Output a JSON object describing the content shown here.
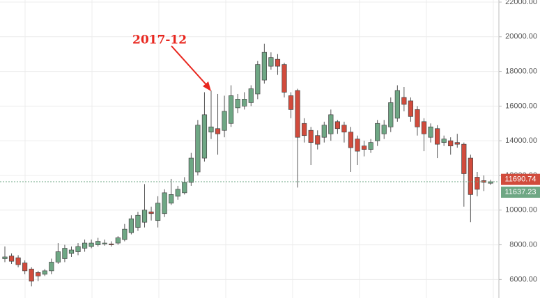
{
  "chart_data": {
    "type": "candlestick",
    "annotation": "2017-12",
    "color_up": "#6ea784",
    "color_down": "#d14b3c",
    "ylim": [
      4930,
      22120
    ],
    "yticks": [
      {
        "value": 6000,
        "label": "6000.00"
      },
      {
        "value": 8000,
        "label": "8000.00"
      },
      {
        "value": 10000,
        "label": "10000.00"
      },
      {
        "value": 12000,
        "label": "12000.00"
      },
      {
        "value": 14000,
        "label": "14000.00"
      },
      {
        "value": 16000,
        "label": "16000.00"
      },
      {
        "value": 18000,
        "label": "18000.00"
      },
      {
        "value": 20000,
        "label": "20000.00"
      },
      {
        "value": 22000,
        "label": "22000.00"
      }
    ],
    "grid": true,
    "open": [
      7200,
      7350,
      7250,
      6950,
      6600,
      6400,
      6300,
      6500,
      7000,
      7200,
      7500,
      7600,
      7800,
      7900,
      8000,
      8050,
      8050,
      8100,
      8300,
      8700,
      9000,
      9300,
      9900,
      9400,
      9800,
      10400,
      10800,
      11000,
      11600,
      12200,
      13000,
      14500,
      14700,
      14600,
      15000,
      15900,
      16000,
      16200,
      16700,
      17500,
      18300,
      18700,
      18400,
      16600,
      16900,
      15000,
      14600,
      14300,
      14200,
      14400,
      15100,
      14900,
      14500,
      14100,
      13700,
      13500,
      14000,
      14400,
      14800,
      15300,
      16500,
      16300,
      15800,
      15100,
      14200,
      14700,
      13900,
      14000,
      13900,
      13800,
      13000,
      11900,
      11700,
      11550
    ],
    "high": [
      7900,
      7500,
      7400,
      7100,
      6700,
      6500,
      6600,
      7200,
      8100,
      8000,
      7900,
      8100,
      8300,
      8300,
      8400,
      8300,
      8200,
      8500,
      9200,
      9700,
      9900,
      11500,
      10200,
      10800,
      11200,
      11800,
      11400,
      11900,
      13300,
      15200,
      16800,
      16900,
      16700,
      16600,
      17200,
      16700,
      16800,
      17200,
      18600,
      19600,
      19100,
      19000,
      18500,
      16800,
      17000,
      15300,
      14800,
      14600,
      15100,
      15800,
      15200,
      15100,
      14800,
      14300,
      14000,
      14100,
      15200,
      15200,
      16500,
      17200,
      17100,
      16500,
      16000,
      15300,
      15000,
      14900,
      14300,
      14200,
      14400,
      13900,
      13200,
      12200,
      12000,
      11750
    ],
    "low": [
      7000,
      6900,
      6700,
      6300,
      5600,
      5900,
      6200,
      6300,
      6900,
      7000,
      7300,
      7400,
      7600,
      7800,
      7900,
      7950,
      7900,
      8000,
      8200,
      8600,
      8800,
      9000,
      9400,
      9000,
      9600,
      10300,
      10600,
      10900,
      11400,
      12000,
      12800,
      14100,
      13200,
      14200,
      14800,
      15600,
      15800,
      16000,
      16400,
      17300,
      18100,
      17800,
      16500,
      15300,
      11300,
      13900,
      12600,
      13500,
      13900,
      14000,
      14400,
      13900,
      12200,
      12600,
      13100,
      13300,
      13700,
      14100,
      14500,
      15100,
      15700,
      15100,
      14300,
      13400,
      13900,
      13000,
      13700,
      13200,
      13600,
      10200,
      9300,
      10800,
      11100,
      11450
    ],
    "close": [
      7300,
      7050,
      6850,
      6500,
      5900,
      6200,
      6500,
      7000,
      7600,
      7800,
      7700,
      7900,
      8100,
      8100,
      8200,
      8100,
      8000,
      8400,
      8900,
      9500,
      9700,
      10000,
      9800,
      10400,
      11000,
      10900,
      11200,
      11600,
      13000,
      14900,
      15500,
      14800,
      14400,
      15700,
      16600,
      16400,
      16400,
      17000,
      18400,
      19100,
      18800,
      18300,
      16800,
      15800,
      14200,
      14300,
      13900,
      13800,
      14900,
      15500,
      14700,
      14500,
      13600,
      13400,
      13500,
      13900,
      15000,
      14900,
      16200,
      16900,
      16100,
      15400,
      14800,
      14400,
      14800,
      13800,
      14100,
      13700,
      13800,
      12100,
      10900,
      11200,
      11600,
      11637.23
    ],
    "price_labels": [
      {
        "value": 11690.74,
        "color": "#d14b3c"
      },
      {
        "value": 11637.23,
        "color": "#6ea784"
      }
    ]
  }
}
